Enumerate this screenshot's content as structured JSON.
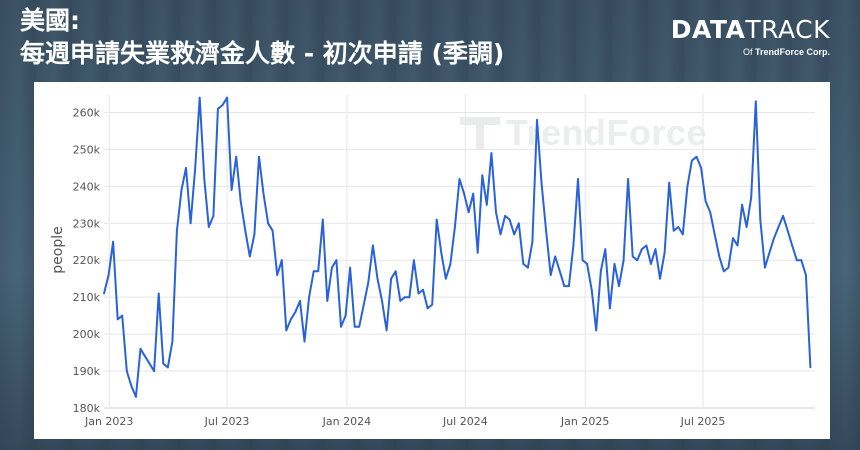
{
  "header": {
    "title_line1": "美國:",
    "title_line2": "每週申請失業救濟金人數 - 初次申請 (季調)"
  },
  "logo": {
    "bold": "DATA",
    "light": "TRACK",
    "of": "Of",
    "company": "TrendForce Corp."
  },
  "watermark": "TrendForce",
  "colors": {
    "line": "#2962d9",
    "grid": "#e6e6e6",
    "axis_text": "#555555"
  },
  "chart_data": {
    "type": "line",
    "title": "",
    "xlabel": "",
    "ylabel": "people",
    "ylim": [
      180000,
      265000
    ],
    "yticks": [
      180000,
      190000,
      200000,
      210000,
      220000,
      230000,
      240000,
      250000,
      260000
    ],
    "ytick_labels": [
      "180k",
      "190k",
      "200k",
      "210k",
      "220k",
      "230k",
      "240k",
      "250k",
      "260k"
    ],
    "xlim": [
      "2022-12-24",
      "2025-12-20"
    ],
    "xticks": [
      "2023-01-01",
      "2023-07-01",
      "2024-01-01",
      "2024-07-01",
      "2025-01-01",
      "2025-07-01"
    ],
    "xtick_labels": [
      "Jan 2023",
      "Jul 2023",
      "Jan 2024",
      "Jul 2024",
      "Jan 2025",
      "Jul 2025"
    ],
    "grid": true,
    "legend": "none",
    "series": [
      {
        "x": [
          "2022-12-24",
          "2022-12-31",
          "2023-01-07",
          "2023-01-14",
          "2023-01-21",
          "2023-01-28",
          "2023-02-04",
          "2023-02-11",
          "2023-02-18",
          "2023-02-25",
          "2023-03-04",
          "2023-03-11",
          "2023-03-18",
          "2023-03-25",
          "2023-04-01",
          "2023-04-08",
          "2023-04-15",
          "2023-04-22",
          "2023-04-29",
          "2023-05-06",
          "2023-05-13",
          "2023-05-20",
          "2023-05-27",
          "2023-06-03",
          "2023-06-10",
          "2023-06-17",
          "2023-06-24",
          "2023-07-01",
          "2023-07-08",
          "2023-07-15",
          "2023-07-22",
          "2023-07-29",
          "2023-08-05",
          "2023-08-12",
          "2023-08-19",
          "2023-08-26",
          "2023-09-02",
          "2023-09-09",
          "2023-09-16",
          "2023-09-23",
          "2023-09-30",
          "2023-10-07",
          "2023-10-14",
          "2023-10-21",
          "2023-10-28",
          "2023-11-04",
          "2023-11-11",
          "2023-11-18",
          "2023-11-25",
          "2023-12-02",
          "2023-12-09",
          "2023-12-16",
          "2023-12-23",
          "2023-12-30",
          "2024-01-06",
          "2024-01-13",
          "2024-01-20",
          "2024-01-27",
          "2024-02-03",
          "2024-02-10",
          "2024-02-17",
          "2024-02-24",
          "2024-03-02",
          "2024-03-09",
          "2024-03-16",
          "2024-03-23",
          "2024-03-30",
          "2024-04-06",
          "2024-04-13",
          "2024-04-20",
          "2024-04-27",
          "2024-05-04",
          "2024-05-11",
          "2024-05-18",
          "2024-05-25",
          "2024-06-01",
          "2024-06-08",
          "2024-06-15",
          "2024-06-22",
          "2024-06-29",
          "2024-07-06",
          "2024-07-13",
          "2024-07-20",
          "2024-07-27",
          "2024-08-03",
          "2024-08-10",
          "2024-08-17",
          "2024-08-24",
          "2024-08-31",
          "2024-09-07",
          "2024-09-14",
          "2024-09-21",
          "2024-09-28",
          "2024-10-05",
          "2024-10-12",
          "2024-10-19",
          "2024-10-26",
          "2024-11-02",
          "2024-11-09",
          "2024-11-16",
          "2024-11-23",
          "2024-11-30",
          "2024-12-07",
          "2024-12-14",
          "2024-12-21",
          "2024-12-28",
          "2025-01-04",
          "2025-01-11",
          "2025-01-18",
          "2025-01-25",
          "2025-02-01",
          "2025-02-08",
          "2025-02-15",
          "2025-02-22",
          "2025-03-01",
          "2025-03-08",
          "2025-03-15",
          "2025-03-22",
          "2025-03-29",
          "2025-04-05",
          "2025-04-12",
          "2025-04-19",
          "2025-04-26",
          "2025-05-03",
          "2025-05-10",
          "2025-05-17",
          "2025-05-24",
          "2025-05-31",
          "2025-06-07",
          "2025-06-14",
          "2025-06-21",
          "2025-06-28",
          "2025-07-05",
          "2025-07-12",
          "2025-07-19",
          "2025-07-26",
          "2025-08-02",
          "2025-08-09",
          "2025-08-16",
          "2025-08-23",
          "2025-08-30",
          "2025-09-06",
          "2025-09-13",
          "2025-09-20",
          "2025-09-27",
          "2025-10-04",
          "2025-10-11",
          "2025-10-18",
          "2025-10-25",
          "2025-11-01",
          "2025-11-08",
          "2025-11-15",
          "2025-11-22",
          "2025-11-29",
          "2025-12-06",
          "2025-12-13"
        ],
        "values": [
          211000,
          216000,
          225000,
          204000,
          205000,
          190000,
          186000,
          183000,
          196000,
          194000,
          192000,
          190000,
          211000,
          192000,
          191000,
          198000,
          228000,
          239000,
          245000,
          230000,
          245000,
          264000,
          242000,
          229000,
          232000,
          261000,
          262000,
          264000,
          239000,
          248000,
          236000,
          228000,
          221000,
          227000,
          248000,
          238000,
          230000,
          228000,
          216000,
          220000,
          201000,
          204000,
          206000,
          209000,
          198000,
          210000,
          217000,
          217000,
          231000,
          209000,
          218000,
          220000,
          202000,
          205000,
          218000,
          202000,
          202000,
          208000,
          214000,
          224000,
          215000,
          209000,
          201000,
          215000,
          217000,
          209000,
          210000,
          210000,
          220000,
          211000,
          212000,
          207000,
          208000,
          231000,
          222000,
          215000,
          219000,
          229000,
          242000,
          238000,
          233000,
          238000,
          222000,
          243000,
          235000,
          249000,
          233000,
          227000,
          232000,
          231000,
          227000,
          230000,
          219000,
          218000,
          225000,
          258000,
          241000,
          228000,
          216000,
          221000,
          217000,
          213000,
          213000,
          224000,
          242000,
          220000,
          219000,
          212000,
          201000,
          217000,
          223000,
          207000,
          219000,
          213000,
          220000,
          242000,
          221000,
          220000,
          223000,
          224000,
          219000,
          223000,
          215000,
          222000,
          241000,
          228000,
          229000,
          227000,
          240000,
          247000,
          248000,
          245000,
          236000,
          233000,
          227000,
          221000,
          217000,
          218000,
          226000,
          224000,
          235000,
          229000,
          237000,
          263000,
          231000,
          218000,
          222000,
          226000,
          229000,
          232000,
          228000,
          224000,
          220000,
          220000,
          216000,
          191000
        ]
      }
    ]
  }
}
